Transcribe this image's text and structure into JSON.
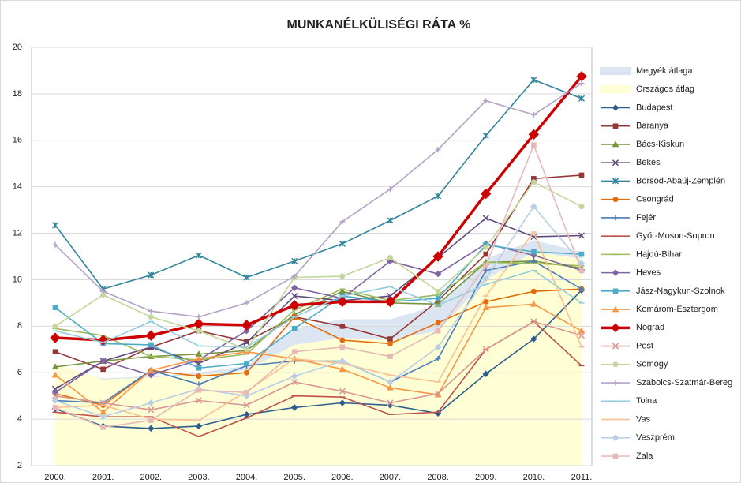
{
  "chart_data": {
    "type": "line",
    "title": "MUNKANÉLKÜLISÉGI RÁTA %",
    "categories": [
      "2000.",
      "2001.",
      "2002.",
      "2003.",
      "2004.",
      "2005.",
      "2006.",
      "2007.",
      "2008.",
      "2009.",
      "2010.",
      "2011."
    ],
    "ylim": [
      2,
      20
    ],
    "yticks": [
      2,
      4,
      6,
      8,
      10,
      12,
      14,
      16,
      18,
      20
    ],
    "grid": true,
    "legend": "right",
    "series": [
      {
        "name": "Megyék átlaga",
        "style": "area",
        "color": "#dce6f2",
        "values": [
          6.2,
          5.75,
          5.85,
          6.0,
          6.3,
          7.9,
          8.3,
          8.3,
          8.9,
          10.9,
          11.7,
          11.2
        ]
      },
      {
        "name": "Országos átlag",
        "style": "area",
        "color": "#ffffd5",
        "values": [
          6.4,
          5.7,
          5.8,
          5.9,
          6.1,
          7.2,
          7.5,
          7.4,
          7.8,
          10.0,
          11.2,
          10.9
        ]
      },
      {
        "name": "Budapest",
        "color": "#2e5e8e",
        "marker": "diamond",
        "values": [
          4.45,
          3.7,
          3.6,
          3.7,
          4.2,
          4.5,
          4.7,
          4.6,
          4.25,
          5.95,
          7.45,
          9.55
        ]
      },
      {
        "name": "Baranya",
        "color": "#953735",
        "marker": "square",
        "values": [
          6.9,
          6.15,
          7.1,
          7.8,
          7.35,
          8.4,
          8.0,
          7.45,
          9.1,
          11.1,
          14.35,
          14.5
        ]
      },
      {
        "name": "Bács-Kiskun",
        "color": "#77933c",
        "marker": "triangle",
        "values": [
          6.25,
          6.5,
          6.7,
          6.8,
          6.95,
          8.5,
          9.5,
          9.0,
          8.95,
          10.75,
          10.8,
          10.5
        ]
      },
      {
        "name": "Békés",
        "color": "#604a7b",
        "marker": "x",
        "values": [
          5.3,
          6.5,
          7.1,
          6.4,
          7.3,
          9.3,
          9.1,
          9.3,
          10.95,
          12.65,
          11.85,
          11.9
        ]
      },
      {
        "name": "Borsod-Abaúj-Zemplén",
        "color": "#31859c",
        "marker": "star",
        "values": [
          12.35,
          9.6,
          10.2,
          11.05,
          10.1,
          10.8,
          11.55,
          12.55,
          13.6,
          16.2,
          18.6,
          17.8
        ]
      },
      {
        "name": "Csongrád",
        "color": "#e46c0a",
        "marker": "circle",
        "values": [
          5.1,
          4.6,
          6.1,
          5.85,
          6.0,
          8.4,
          7.4,
          7.25,
          8.15,
          9.05,
          9.5,
          9.6
        ]
      },
      {
        "name": "Fejér",
        "color": "#4a7ebb",
        "marker": "plus",
        "values": [
          4.8,
          4.7,
          6.1,
          5.5,
          6.3,
          6.5,
          6.5,
          5.6,
          6.6,
          10.4,
          10.8,
          9.6
        ]
      },
      {
        "name": "Győr-Moson-Sopron",
        "color": "#c0504d",
        "marker": "dash",
        "values": [
          4.3,
          4.1,
          4.1,
          3.25,
          4.05,
          5.0,
          4.95,
          4.2,
          4.3,
          7.0,
          8.2,
          6.3
        ]
      },
      {
        "name": "Hajdú-Bihar",
        "color": "#9bbb59",
        "marker": "dash",
        "values": [
          7.9,
          7.6,
          6.7,
          6.55,
          6.8,
          8.7,
          9.6,
          9.1,
          9.35,
          10.75,
          10.7,
          10.6
        ]
      },
      {
        "name": "Heves",
        "color": "#8064a2",
        "marker": "diamond",
        "values": [
          5.15,
          6.5,
          5.9,
          6.55,
          7.8,
          9.65,
          9.2,
          10.8,
          10.25,
          11.55,
          11.05,
          10.4
        ]
      },
      {
        "name": "Jász-Nagykun-Szolnok",
        "color": "#4bacc6",
        "marker": "square",
        "values": [
          8.8,
          7.25,
          7.2,
          6.2,
          6.4,
          7.9,
          9.3,
          9.05,
          9.2,
          11.5,
          11.2,
          11.1
        ]
      },
      {
        "name": "Komárom-Esztergom",
        "color": "#f79646",
        "marker": "triangle",
        "values": [
          5.9,
          4.3,
          6.1,
          6.6,
          6.9,
          6.6,
          6.15,
          5.35,
          5.05,
          8.8,
          8.95,
          7.8
        ]
      },
      {
        "name": "Nógrád",
        "color": "#cc0000",
        "marker": "diamond",
        "bold": true,
        "values": [
          7.5,
          7.4,
          7.6,
          8.1,
          8.05,
          8.9,
          9.05,
          9.05,
          11.0,
          13.7,
          16.25,
          18.75
        ]
      },
      {
        "name": "Pest",
        "color": "#d99694",
        "marker": "x",
        "values": [
          5.0,
          4.7,
          4.4,
          4.8,
          4.6,
          5.6,
          5.2,
          4.7,
          5.1,
          7.0,
          8.2,
          7.6
        ]
      },
      {
        "name": "Somogy",
        "color": "#c3d69b",
        "marker": "circle",
        "values": [
          8.0,
          9.35,
          8.4,
          7.8,
          7.0,
          10.1,
          10.15,
          10.95,
          9.5,
          11.4,
          14.2,
          13.15
        ]
      },
      {
        "name": "Szabolcs-Szatmár-Bereg",
        "color": "#b3a2c7",
        "marker": "plus",
        "values": [
          11.5,
          9.5,
          8.65,
          8.4,
          9.0,
          10.15,
          12.5,
          13.9,
          15.6,
          17.7,
          17.1,
          18.45
        ]
      },
      {
        "name": "Tolna",
        "color": "#93cddd",
        "marker": "dash",
        "values": [
          7.8,
          7.3,
          8.2,
          7.15,
          7.1,
          8.4,
          9.3,
          9.7,
          8.9,
          9.8,
          10.4,
          9.0
        ]
      },
      {
        "name": "Vas",
        "color": "#fac090",
        "marker": "dash",
        "values": [
          4.5,
          4.6,
          4.0,
          3.95,
          5.2,
          6.6,
          6.4,
          5.9,
          5.6,
          9.3,
          12.05,
          7.1
        ]
      },
      {
        "name": "Veszprém",
        "color": "#b9cde5",
        "marker": "diamond",
        "values": [
          4.8,
          4.1,
          4.7,
          5.3,
          5.0,
          5.85,
          6.5,
          5.6,
          7.1,
          10.05,
          13.15,
          10.7
        ]
      },
      {
        "name": "Zala",
        "color": "#e6b9b8",
        "marker": "square",
        "values": [
          4.5,
          3.65,
          3.95,
          5.25,
          5.15,
          6.9,
          7.1,
          6.7,
          7.8,
          10.6,
          15.8,
          10.4
        ]
      }
    ]
  }
}
